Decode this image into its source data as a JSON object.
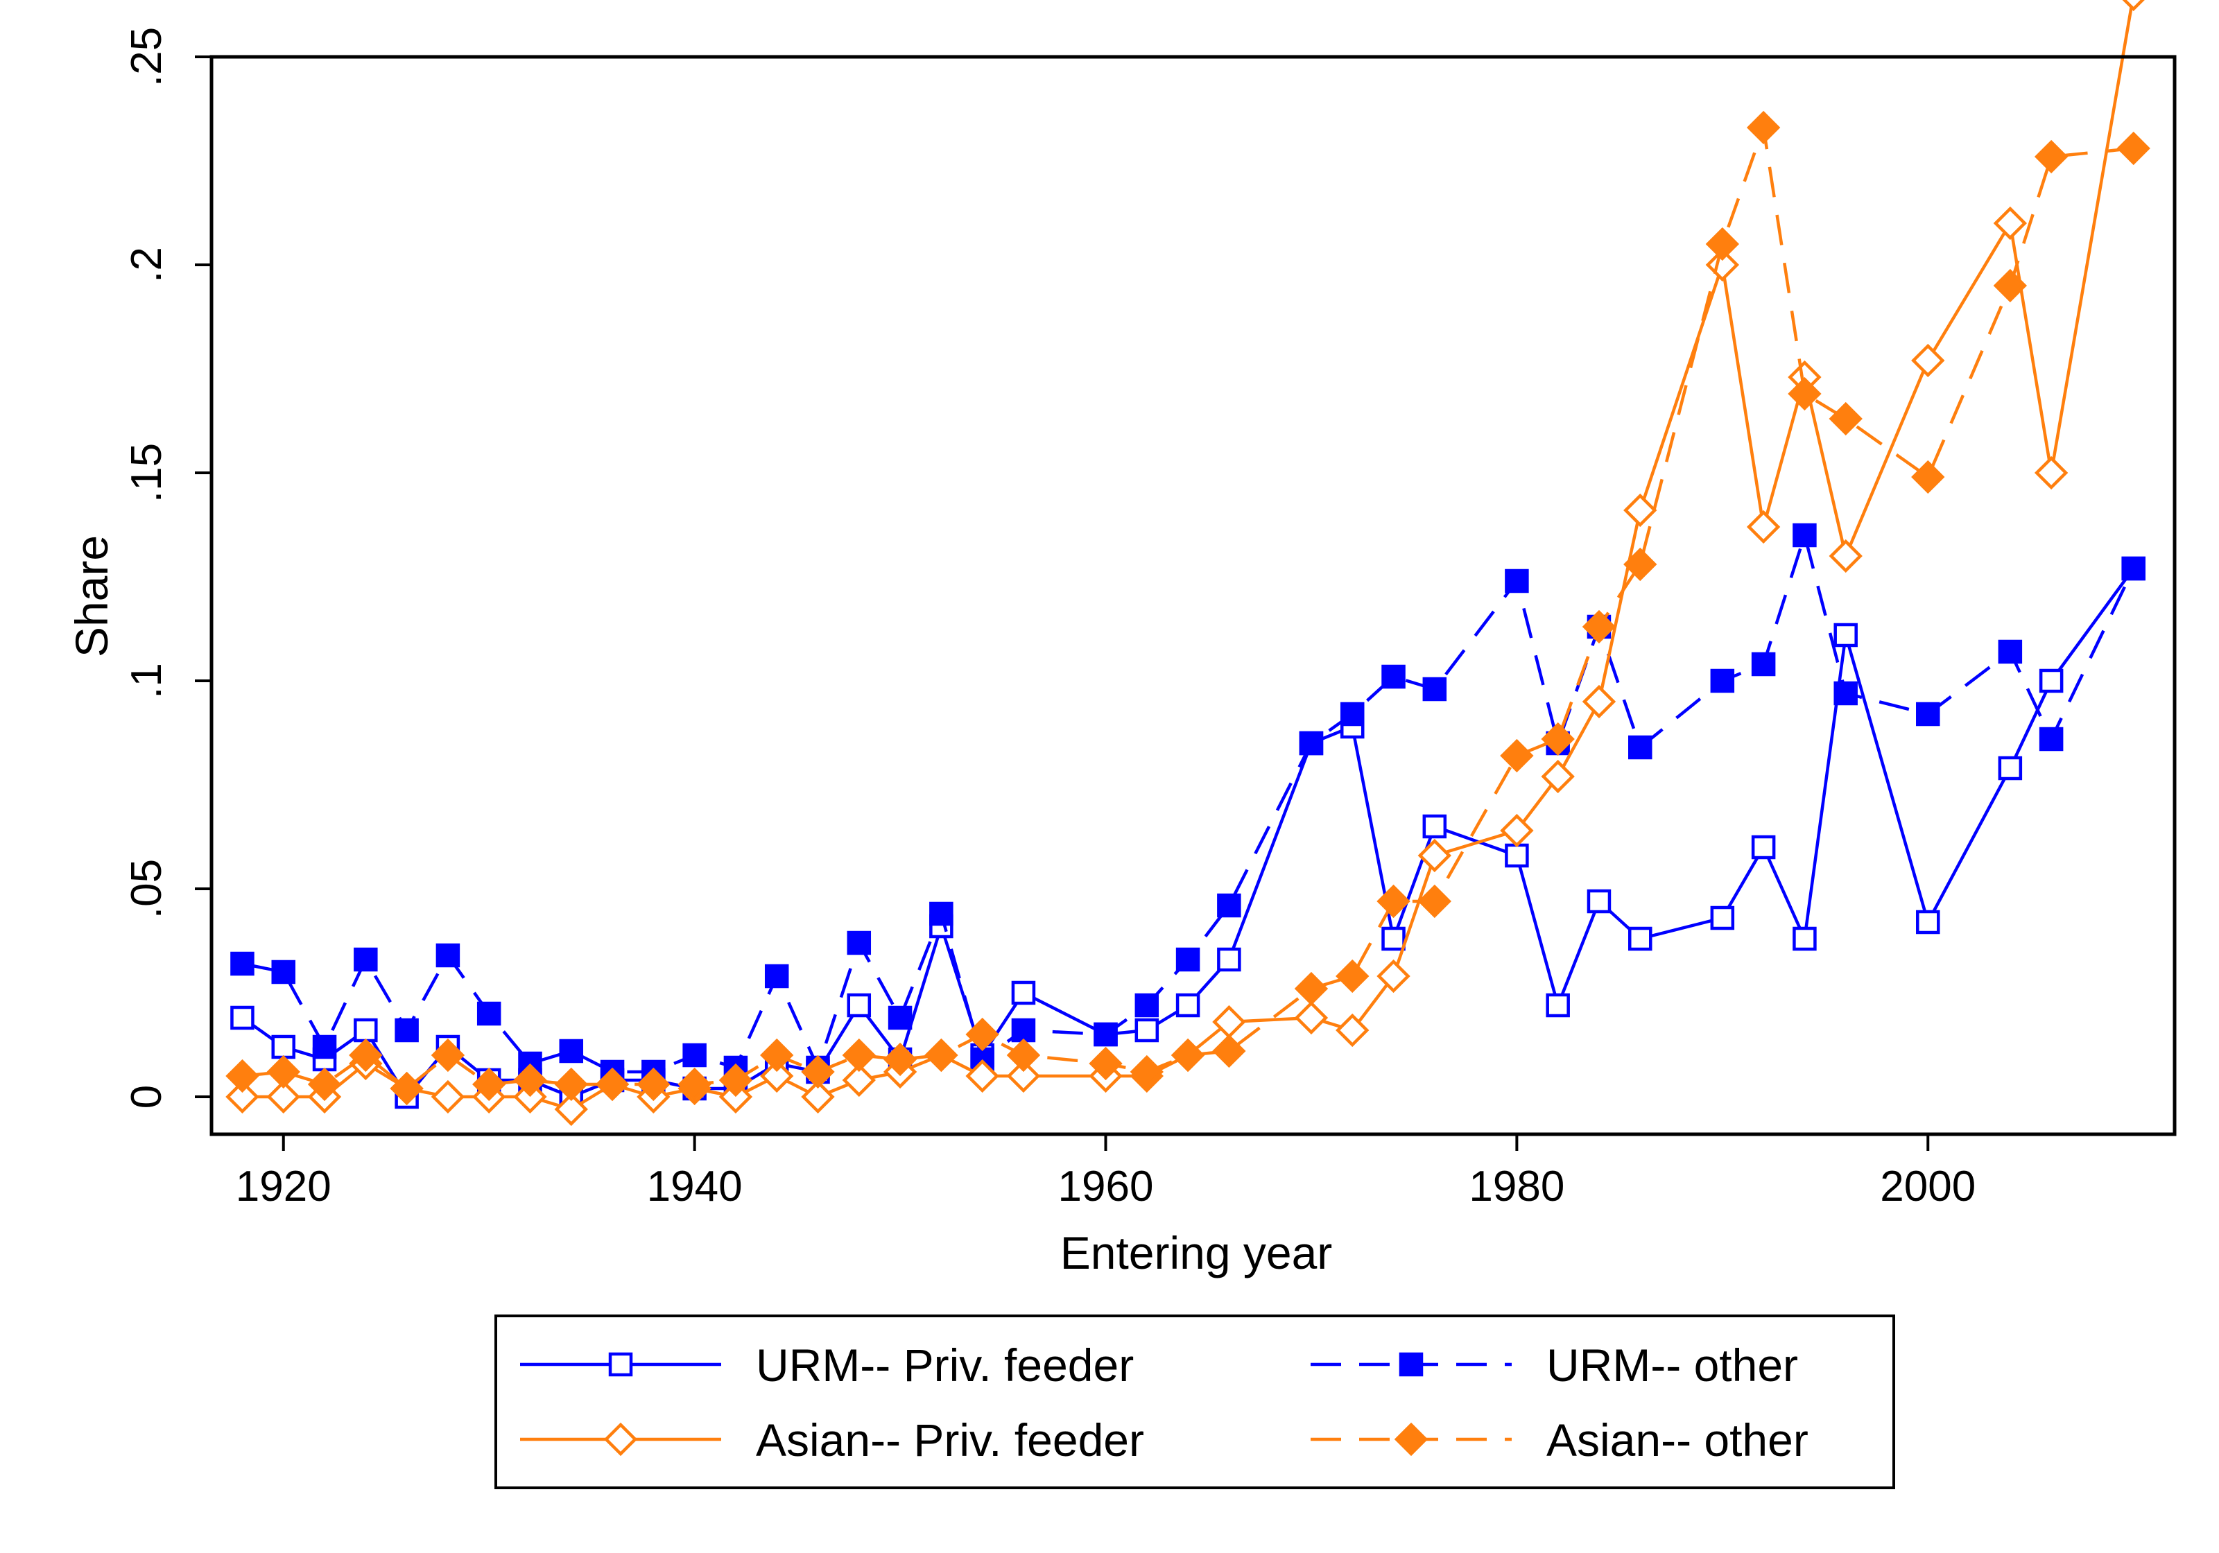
{
  "chart_data": {
    "type": "line",
    "xlabel": "Entering year",
    "ylabel": "Share",
    "xlim": [
      1916.5,
      2012
    ],
    "ylim": [
      -0.009,
      0.25
    ],
    "xticks": [
      {
        "value": 1920,
        "label": "1920"
      },
      {
        "value": 1940,
        "label": "1940"
      },
      {
        "value": 1960,
        "label": "1960"
      },
      {
        "value": 1980,
        "label": "1980"
      },
      {
        "value": 2000,
        "label": "2000"
      }
    ],
    "yticks": [
      {
        "value": 0,
        "label": "0"
      },
      {
        "value": 0.05,
        "label": ".05"
      },
      {
        "value": 0.1,
        "label": ".1"
      },
      {
        "value": 0.15,
        "label": ".15"
      },
      {
        "value": 0.2,
        "label": ".2"
      },
      {
        "value": 0.25,
        "label": ".25"
      }
    ],
    "grid": false,
    "legend_position": "bottom",
    "series": [
      {
        "name": "URM-- Priv. feeder",
        "color": "#0000ff",
        "line_style": "solid",
        "marker": "hollow-square",
        "x": [
          1918,
          1920,
          1922,
          1924,
          1926,
          1928,
          1930,
          1932,
          1934,
          1936,
          1938,
          1940,
          1942,
          1944,
          1946,
          1948,
          1950,
          1952,
          1954,
          1956,
          1960,
          1962,
          1964,
          1966,
          1970,
          1972,
          1974,
          1976,
          1980,
          1982,
          1984,
          1986,
          1990,
          1992,
          1994,
          1996,
          2000,
          2004,
          2006,
          2010
        ],
        "y": [
          0.019,
          0.012,
          0.009,
          0.016,
          0.0,
          0.012,
          0.004,
          0.004,
          0.0,
          0.004,
          0.004,
          0.002,
          0.002,
          0.008,
          0.006,
          0.022,
          0.009,
          0.041,
          0.01,
          0.025,
          0.015,
          0.016,
          0.022,
          0.033,
          0.085,
          0.089,
          0.038,
          0.065,
          0.058,
          0.022,
          0.047,
          0.038,
          0.043,
          0.06,
          0.038,
          0.111,
          0.042,
          0.079,
          0.1,
          0.127
        ]
      },
      {
        "name": "URM-- other",
        "color": "#0000ff",
        "line_style": "dashed",
        "marker": "filled-square",
        "x": [
          1918,
          1920,
          1922,
          1924,
          1926,
          1928,
          1930,
          1932,
          1934,
          1936,
          1938,
          1940,
          1942,
          1944,
          1946,
          1948,
          1950,
          1952,
          1954,
          1956,
          1960,
          1962,
          1964,
          1966,
          1970,
          1972,
          1974,
          1976,
          1980,
          1982,
          1984,
          1986,
          1990,
          1992,
          1994,
          1996,
          2000,
          2004,
          2006,
          2010
        ],
        "y": [
          0.032,
          0.03,
          0.012,
          0.033,
          0.016,
          0.034,
          0.02,
          0.008,
          0.011,
          0.006,
          0.006,
          0.01,
          0.007,
          0.029,
          0.007,
          0.037,
          0.019,
          0.044,
          0.009,
          0.016,
          0.015,
          0.022,
          0.033,
          0.046,
          0.085,
          0.092,
          0.101,
          0.098,
          0.124,
          0.085,
          0.113,
          0.084,
          0.1,
          0.104,
          0.135,
          0.097,
          0.092,
          0.107,
          0.086,
          0.127
        ]
      },
      {
        "name": "Asian-- Priv. feeder",
        "color": "#ff7f0e",
        "line_style": "solid",
        "marker": "hollow-diamond",
        "x": [
          1918,
          1920,
          1922,
          1924,
          1926,
          1928,
          1930,
          1932,
          1934,
          1936,
          1938,
          1940,
          1942,
          1944,
          1946,
          1948,
          1950,
          1952,
          1954,
          1956,
          1960,
          1962,
          1964,
          1966,
          1970,
          1972,
          1974,
          1976,
          1980,
          1982,
          1984,
          1986,
          1990,
          1992,
          1994,
          1996,
          2000,
          2004,
          2006,
          2010
        ],
        "y": [
          0.0,
          0.0,
          0.0,
          0.008,
          0.002,
          0.0,
          0.0,
          0.0,
          -0.003,
          0.003,
          0.0,
          0.002,
          0.0,
          0.005,
          0.0,
          0.004,
          0.006,
          0.01,
          0.005,
          0.005,
          0.005,
          0.005,
          0.01,
          0.018,
          0.019,
          0.016,
          0.029,
          0.058,
          0.064,
          0.077,
          0.095,
          0.141,
          0.2,
          0.137,
          0.173,
          0.13,
          0.177,
          0.21,
          0.15,
          0.265
        ]
      },
      {
        "name": "Asian-- other",
        "color": "#ff7f0e",
        "line_style": "dashed",
        "marker": "filled-diamond",
        "x": [
          1918,
          1920,
          1922,
          1924,
          1926,
          1928,
          1930,
          1932,
          1934,
          1936,
          1938,
          1940,
          1942,
          1944,
          1946,
          1948,
          1950,
          1952,
          1954,
          1956,
          1960,
          1962,
          1964,
          1966,
          1970,
          1972,
          1974,
          1976,
          1980,
          1982,
          1984,
          1986,
          1990,
          1992,
          1994,
          1996,
          2000,
          2004,
          2006,
          2010
        ],
        "y": [
          0.005,
          0.006,
          0.003,
          0.01,
          0.002,
          0.01,
          0.003,
          0.004,
          0.003,
          0.003,
          0.003,
          0.003,
          0.004,
          0.01,
          0.006,
          0.01,
          0.009,
          0.01,
          0.015,
          0.01,
          0.008,
          0.006,
          0.01,
          0.011,
          0.026,
          0.029,
          0.047,
          0.047,
          0.082,
          0.086,
          0.113,
          0.128,
          0.205,
          0.233,
          0.169,
          0.163,
          0.149,
          0.195,
          0.226,
          0.228
        ]
      }
    ]
  }
}
